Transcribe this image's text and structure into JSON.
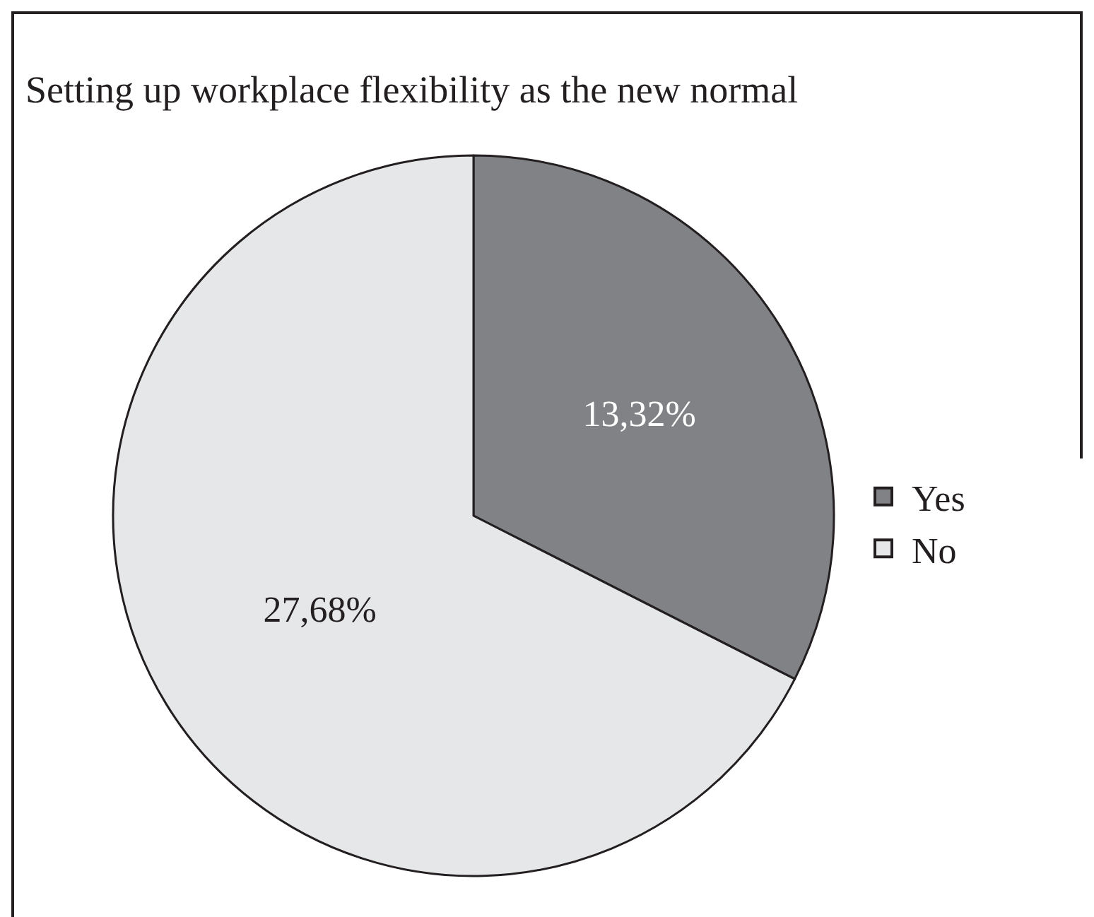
{
  "chart_data": {
    "type": "pie",
    "title": "Setting up workplace flexibility as the new normal",
    "categories": [
      "Yes",
      "No"
    ],
    "values": [
      13.32,
      27.68
    ],
    "value_labels": [
      "13,32%",
      "27,68%"
    ],
    "colors": [
      "#808285",
      "#e6e7e8"
    ],
    "legend": "right"
  }
}
